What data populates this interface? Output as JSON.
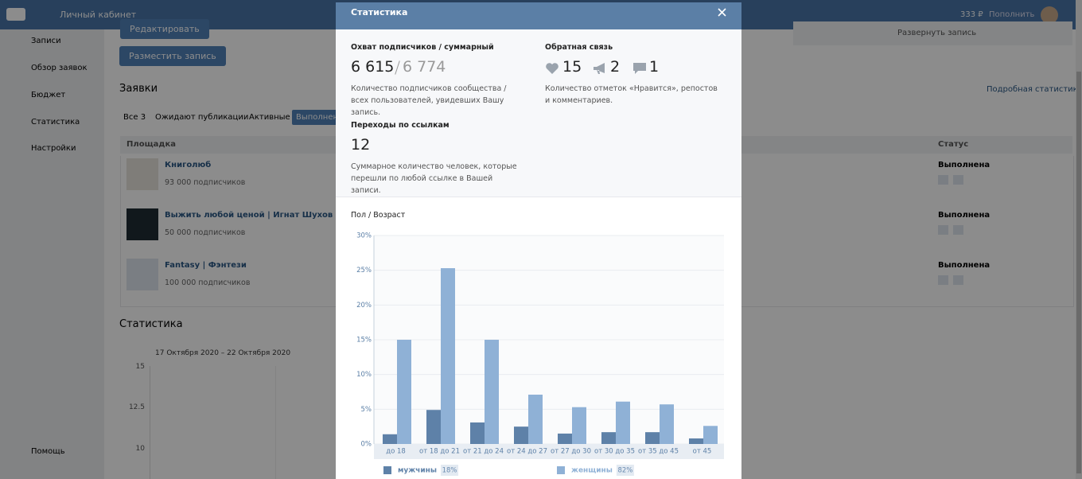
{
  "background": {
    "header": {
      "title": "Личный кабинет",
      "balance": "333 ₽",
      "top_up": "Пополнить"
    },
    "sidebar": [
      "Записи",
      "Обзор заявок",
      "Бюджет",
      "Статистика",
      "Настройки"
    ],
    "help": "Помощь",
    "edit_button": "Редактировать",
    "post_button": "Разместить запись",
    "expand_post": "Развернуть запись",
    "requests_title": "Заявки",
    "detailed_stats": "Подробная статистика",
    "tabs": [
      "Все 3",
      "Ожидают публикации",
      "Активные",
      "Выполненные"
    ],
    "table": {
      "headers": [
        "Площадка",
        "Статус"
      ],
      "rows": [
        [
          "Книголюб",
          "93 000 подписчиков",
          "Выполнена"
        ],
        [
          "Выжить любой ценой | Игнат Шухов ...",
          "50 000 подписчиков",
          "Выполнена"
        ],
        [
          "Fantasy | Фэнтези",
          "100 000 подписчиков",
          "Выполнена"
        ]
      ]
    },
    "stats_title": "Статистика",
    "stats_period": "17 Октября 2020 – 22 Октября 2020",
    "stats_yticks": [
      15,
      12.5,
      10
    ]
  },
  "modal": {
    "title": "Статистика",
    "reach": {
      "label": "Охват подписчиков / суммарный",
      "subscribers": "6 615",
      "total": "6 774",
      "description": "Количество подписчиков сообщества / всех пользователей, увидевших Вашу запись."
    },
    "feedback": {
      "label": "Обратная связь",
      "likes": 15,
      "reposts": 2,
      "comments": 1,
      "description": "Количество отметок «Нравится», репостов и комментариев."
    },
    "clicks": {
      "label": "Переходы по ссылкам",
      "value": 12,
      "description": "Суммарное количество человек, которые перешли по любой ссылке в Вашей записи."
    },
    "chart_title": "Пол / Возраст"
  },
  "chart_data": {
    "type": "bar",
    "categories": [
      "до 18",
      "от 18 до 21",
      "от 21 до 24",
      "от 24 до 27",
      "от 27 до 30",
      "от 30 до 35",
      "от 35 до 45",
      "от 45"
    ],
    "series": [
      {
        "name": "мужчины",
        "share": "18%",
        "color": "#5e81a8",
        "values": [
          1.4,
          4.9,
          3.1,
          2.5,
          1.5,
          1.7,
          1.7,
          0.8
        ]
      },
      {
        "name": "женщины",
        "share": "82%",
        "color": "#8fb1d6",
        "values": [
          15,
          25.3,
          15,
          7.1,
          5.3,
          6.1,
          5.7,
          2.6
        ]
      }
    ],
    "ylim": [
      0,
      30
    ],
    "yticks": [
      {
        "value": 0,
        "label": "0%"
      },
      {
        "value": 5,
        "label": "5%"
      },
      {
        "value": 10,
        "label": "10%"
      },
      {
        "value": 15,
        "label": "15%"
      },
      {
        "value": 20,
        "label": "20%"
      },
      {
        "value": 25,
        "label": "25%"
      },
      {
        "value": 30,
        "label": "30%"
      }
    ],
    "grid": true
  }
}
